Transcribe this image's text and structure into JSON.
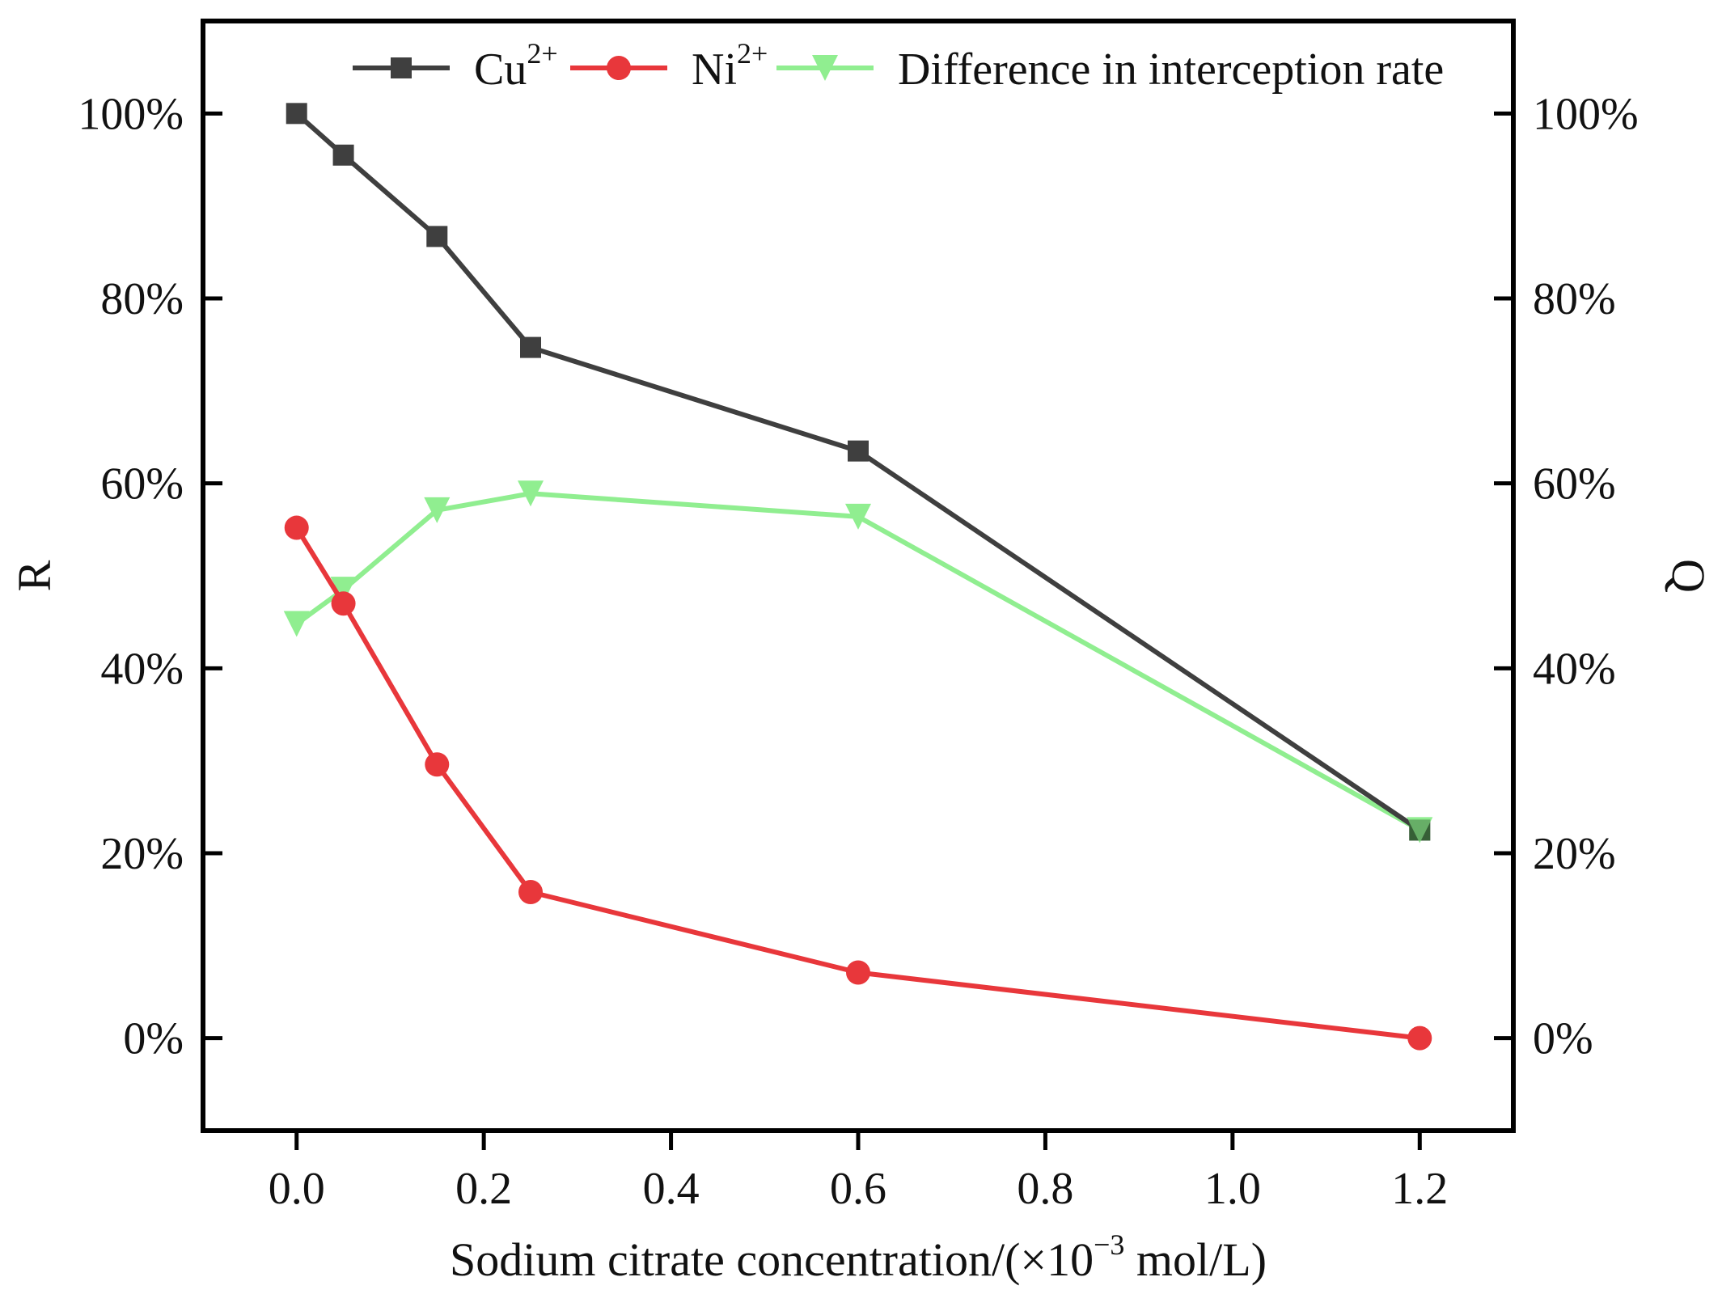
{
  "chart_data": {
    "type": "line",
    "title": "",
    "xlabel": "Sodium citrate concentration/(×10",
    "xlabel_exponent": "−3",
    "xlabel_suffix": " mol/L)",
    "ylabel": "R",
    "y2label": "Q",
    "xlim": [
      -0.1,
      1.3
    ],
    "ylim": [
      -0.1,
      1.1
    ],
    "y2lim": [
      -0.1,
      1.1
    ],
    "x_ticks": [
      0.0,
      0.2,
      0.4,
      0.6,
      0.8,
      1.0,
      1.2
    ],
    "x_tick_labels": [
      "0.0",
      "0.2",
      "0.4",
      "0.6",
      "0.8",
      "1.0",
      "1.2"
    ],
    "y_ticks": [
      0,
      0.2,
      0.4,
      0.6,
      0.8,
      1.0
    ],
    "y_tick_labels": [
      "0%",
      "20%",
      "40%",
      "60%",
      "80%",
      "100%"
    ],
    "y2_tick_labels": [
      "0%",
      "20%",
      "40%",
      "60%",
      "80%",
      "100%"
    ],
    "grid": false,
    "legend_position": "top",
    "x": [
      0,
      0.05,
      0.15,
      0.25,
      0.6,
      1.2
    ],
    "series": [
      {
        "name": "Cu",
        "name_superscript": "2+",
        "marker": "square",
        "axis": "left",
        "color": "#3f3f3f",
        "values": [
          1.0,
          0.955,
          0.867,
          0.747,
          0.635,
          0.225
        ]
      },
      {
        "name": "Ni",
        "name_superscript": "2+",
        "marker": "circle",
        "axis": "left",
        "color": "#e8373b",
        "values": [
          0.552,
          0.47,
          0.296,
          0.158,
          0.071,
          0.0
        ]
      },
      {
        "name": "Difference in interception rate",
        "name_superscript": "",
        "marker": "triangle-down",
        "axis": "right",
        "color": "#90ee90",
        "values": [
          0.448,
          0.485,
          0.571,
          0.589,
          0.564,
          0.225
        ]
      }
    ]
  }
}
